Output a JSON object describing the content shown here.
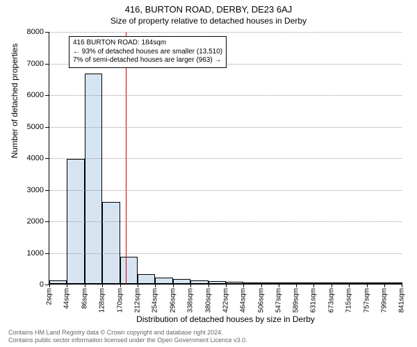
{
  "title": "416, BURTON ROAD, DERBY, DE23 6AJ",
  "subtitle": "Size of property relative to detached houses in Derby",
  "ylabel": "Number of detached properties",
  "xlabel": "Distribution of detached houses by size in Derby",
  "chart": {
    "type": "histogram",
    "background_color": "#ffffff",
    "grid_color_style": "dotted",
    "grid_color": "#999999",
    "ylim": [
      0,
      8000
    ],
    "ytick_step": 1000,
    "yticks": [
      0,
      1000,
      2000,
      3000,
      4000,
      5000,
      6000,
      7000,
      8000
    ],
    "xticks": [
      2,
      44,
      86,
      128,
      170,
      212,
      254,
      296,
      338,
      380,
      422,
      464,
      506,
      547,
      589,
      631,
      673,
      715,
      757,
      799,
      841
    ],
    "xtick_unit": "sqm",
    "bar_fill": "#d6e4f2",
    "bar_border": "#000000",
    "bin_start": 2,
    "bin_width": 42,
    "values": [
      100,
      3950,
      6650,
      2600,
      850,
      300,
      200,
      150,
      100,
      80,
      60,
      50,
      40,
      30,
      25,
      20,
      15,
      12,
      10,
      8
    ],
    "marker_value": 184,
    "marker_color": "#cc0000",
    "label_fontsize": 12,
    "tick_fontsize": 11
  },
  "infobox": {
    "line1": "416 BURTON ROAD: 184sqm",
    "line2": "← 93% of detached houses are smaller (13,510)",
    "line3": "7% of semi-detached houses are larger (963) →"
  },
  "footer": {
    "line1": "Contains HM Land Registry data © Crown copyright and database right 2024.",
    "line2": "Contains public sector information licensed under the Open Government Licence v3.0."
  }
}
